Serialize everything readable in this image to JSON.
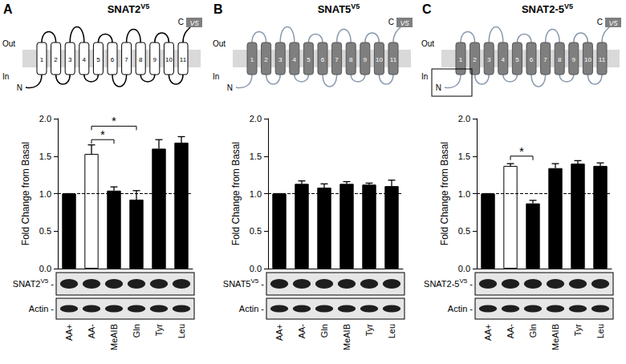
{
  "chart_data": [
    {
      "type": "bar",
      "ylabel": "Fold Change from Basal",
      "categories": [
        "AA+",
        "AA-",
        "MeAIB",
        "Gln",
        "Tyr",
        "Leu"
      ],
      "values": [
        1.0,
        1.53,
        1.04,
        0.92,
        1.6,
        1.68
      ],
      "errors": [
        0,
        0.12,
        0.05,
        0.12,
        0.12,
        0.08
      ],
      "colors": [
        "#000000",
        "#ffffff",
        "#000000",
        "#000000",
        "#000000",
        "#000000"
      ],
      "ylim": [
        0,
        2.0
      ],
      "yticks": [
        {
          "value": 0,
          "label": "0.0"
        },
        {
          "value": 0.5,
          "label": "0.5"
        },
        {
          "value": 1.0,
          "label": "1.0"
        },
        {
          "value": 1.5,
          "label": "1.5"
        },
        {
          "value": 2.0,
          "label": "2.0"
        }
      ],
      "reference_line": 1.0,
      "significance": [
        {
          "from": "AA-",
          "to": "Gln",
          "y": 1.9,
          "label": "*"
        },
        {
          "from": "AA-",
          "to": "MeAIB",
          "y": 1.72,
          "label": "*"
        }
      ],
      "grid": false
    },
    {
      "type": "bar",
      "ylabel": "Fold Change from Basal",
      "categories": [
        "AA+",
        "AA-",
        "Gln",
        "MeAIB",
        "Tyr",
        "Leu"
      ],
      "values": [
        1.0,
        1.13,
        1.08,
        1.13,
        1.12,
        1.1
      ],
      "errors": [
        0,
        0.04,
        0.05,
        0.03,
        0.02,
        0.08
      ],
      "colors": [
        "#000000",
        "#000000",
        "#000000",
        "#000000",
        "#000000",
        "#000000"
      ],
      "ylim": [
        0,
        2.0
      ],
      "yticks": [
        {
          "value": 0,
          "label": "0.0"
        },
        {
          "value": 0.5,
          "label": "0.5"
        },
        {
          "value": 1.0,
          "label": "1.0"
        },
        {
          "value": 1.5,
          "label": "1.5"
        },
        {
          "value": 2.0,
          "label": "2.0"
        }
      ],
      "reference_line": 1.0,
      "significance": [],
      "grid": false
    },
    {
      "type": "bar",
      "ylabel": "Fold Change from Basal",
      "categories": [
        "AA+",
        "AA-",
        "Gln",
        "MeAIB",
        "Tyr",
        "Leu"
      ],
      "values": [
        1.0,
        1.37,
        0.87,
        1.34,
        1.4,
        1.37
      ],
      "errors": [
        0,
        0.03,
        0.04,
        0.06,
        0.04,
        0.04
      ],
      "colors": [
        "#000000",
        "#ffffff",
        "#000000",
        "#000000",
        "#000000",
        "#000000"
      ],
      "ylim": [
        0,
        2.0
      ],
      "yticks": [
        {
          "value": 0,
          "label": "0.0"
        },
        {
          "value": 0.5,
          "label": "0.5"
        },
        {
          "value": 1.0,
          "label": "1.0"
        },
        {
          "value": 1.5,
          "label": "1.5"
        },
        {
          "value": 2.0,
          "label": "2.0"
        }
      ],
      "reference_line": 1.0,
      "significance": [
        {
          "from": "AA-",
          "to": "Gln",
          "y": 1.5,
          "label": "*"
        }
      ],
      "grid": false
    }
  ],
  "panels": [
    {
      "label": "A",
      "title": "SNAT2",
      "title_sup": "V5",
      "topology": {
        "helices": [
          "1",
          "2",
          "3",
          "4",
          "5",
          "6",
          "7",
          "8",
          "9",
          "10",
          "11"
        ],
        "out": "Out",
        "in": "In",
        "n": "N",
        "c": "C",
        "tag": "V5",
        "helix_color": "#ffffff",
        "loop_color": "#000000",
        "n_terminus_boxed": false
      },
      "blot": [
        {
          "text": "SNAT2",
          "sup": "V5",
          "tail": " -"
        },
        {
          "text": "Actin",
          "tail": " -"
        }
      ]
    },
    {
      "label": "B",
      "title": "SNAT5",
      "title_sup": "V5",
      "topology": {
        "helices": [
          "1",
          "2",
          "3",
          "4",
          "5",
          "6",
          "7",
          "8",
          "9",
          "10",
          "11"
        ],
        "out": "Out",
        "in": "In",
        "n": "N",
        "c": "C",
        "tag": "V5",
        "helix_color": "#7f7f7f",
        "loop_color": "#8a9bb0",
        "n_terminus_boxed": false
      },
      "blot": [
        {
          "text": "SNAT5",
          "sup": "V5",
          "tail": " -"
        },
        {
          "text": "Actin",
          "tail": " -"
        }
      ]
    },
    {
      "label": "C",
      "title": "SNAT2-5",
      "title_sup": "V5",
      "topology": {
        "helices": [
          "1",
          "2",
          "3",
          "4",
          "5",
          "6",
          "7",
          "8",
          "9",
          "10",
          "11"
        ],
        "out": "Out",
        "in": "In",
        "n": "N",
        "c": "C",
        "tag": "V5",
        "helix_color": "#7f7f7f",
        "loop_color": "#8a9bb0",
        "n_terminus_boxed": true
      },
      "blot": [
        {
          "text": "SNAT2-5",
          "sup": "V5",
          "tail": " -"
        },
        {
          "text": "Actin",
          "tail": " -"
        }
      ]
    }
  ]
}
